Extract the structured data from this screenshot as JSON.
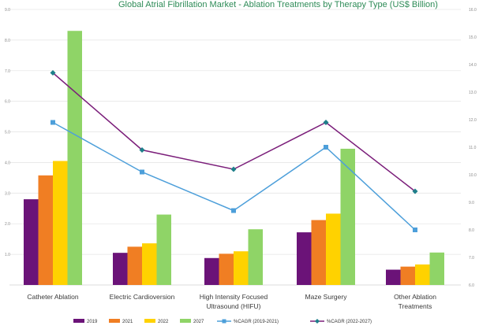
{
  "chart_data": {
    "type": "bar",
    "title": "",
    "categories": [
      [
        "Catheter Ablation"
      ],
      [
        "Electric Cardioversion"
      ],
      [
        "High Intensity Focused",
        "Ultrasound (HIFU)"
      ],
      [
        "Maze Surgery"
      ],
      [
        "Other Ablation",
        "Treatments"
      ]
    ],
    "series": [
      {
        "name": "2019",
        "color": "#6b1378",
        "values": [
          2.8,
          1.05,
          0.88,
          1.72,
          0.5
        ]
      },
      {
        "name": "2021",
        "color": "#f07e23",
        "values": [
          3.58,
          1.25,
          1.02,
          2.12,
          0.6
        ]
      },
      {
        "name": "2022",
        "color": "#ffd200",
        "values": [
          4.05,
          1.36,
          1.1,
          2.33,
          0.67
        ]
      },
      {
        "name": "2027",
        "color": "#8fd467",
        "values": [
          8.3,
          2.3,
          1.82,
          4.45,
          1.06
        ]
      }
    ],
    "line_series": [
      {
        "name": "%CAGR (2019-2021)",
        "color": "#4d9fda",
        "marker": "square",
        "values": [
          11.9,
          10.1,
          8.7,
          11.0,
          8.0
        ]
      },
      {
        "name": "%CAGR (2022-2027)",
        "color": "#7b1e7a",
        "marker": "diamond",
        "values": [
          13.7,
          10.9,
          10.2,
          11.9,
          9.4
        ]
      }
    ],
    "left_axis": {
      "min": 0,
      "max": 9,
      "ticks": [
        "",
        "1.0",
        "2.0",
        "3.0",
        "4.0",
        "5.0",
        "6.0",
        "7.0",
        "8.0",
        "9.0"
      ]
    },
    "right_axis": {
      "min": 6,
      "max": 16,
      "ticks": [
        "6.0",
        "7.0",
        "8.0",
        "9.0",
        "10.0",
        "11.0",
        "12.0",
        "13.0",
        "14.0",
        "15.0",
        "16.0"
      ]
    },
    "grid": true,
    "legend_position": "bottom"
  }
}
